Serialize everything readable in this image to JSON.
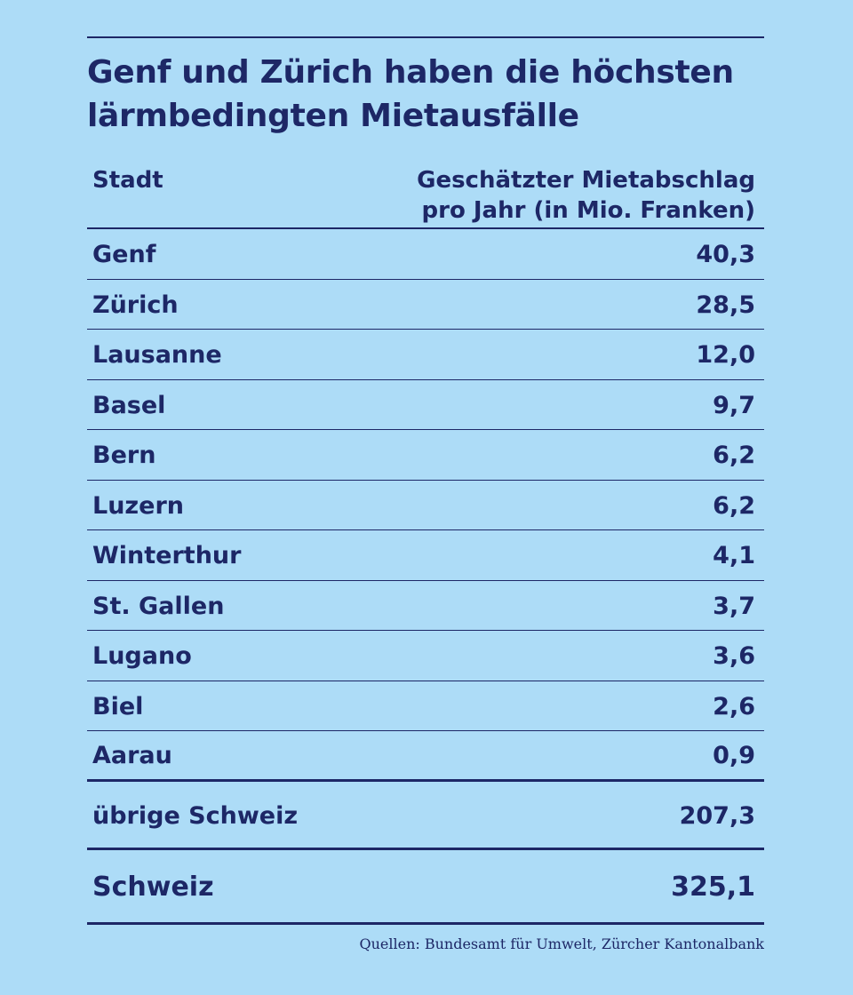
{
  "chart_data": {
    "type": "table",
    "title": "Genf und Zürich haben die höchsten lärmbedingten Mietausfälle",
    "title_lines": [
      "Genf und Zürich haben die höchsten",
      "lärmbedingten Mietausfälle"
    ],
    "columns": [
      "Stadt",
      "Geschätzter Mietabschlag pro Jahr (in Mio. Franken)"
    ],
    "column_header_lines": {
      "city": "Stadt",
      "value_line1": "Geschätzter Mietabschlag",
      "value_line2": "pro Jahr (in Mio. Franken)"
    },
    "rows": [
      {
        "city": "Genf",
        "value": "40,3"
      },
      {
        "city": "Zürich",
        "value": "28,5"
      },
      {
        "city": "Lausanne",
        "value": "12,0"
      },
      {
        "city": "Basel",
        "value": "9,7"
      },
      {
        "city": "Bern",
        "value": "6,2"
      },
      {
        "city": "Luzern",
        "value": "6,2"
      },
      {
        "city": "Winterthur",
        "value": "4,1"
      },
      {
        "city": "St. Gallen",
        "value": "3,7"
      },
      {
        "city": "Lugano",
        "value": "3,6"
      },
      {
        "city": "Biel",
        "value": "2,6"
      },
      {
        "city": "Aarau",
        "value": "0,9"
      }
    ],
    "rest": {
      "city": "übrige Schweiz",
      "value": "207,3"
    },
    "total": {
      "city": "Schweiz",
      "value": "325,1"
    },
    "source": "Quellen: Bundesamt für Umwelt, Zürcher Kantonalbank"
  },
  "colors": {
    "background": "#addcf7",
    "text": "#1d2766"
  }
}
